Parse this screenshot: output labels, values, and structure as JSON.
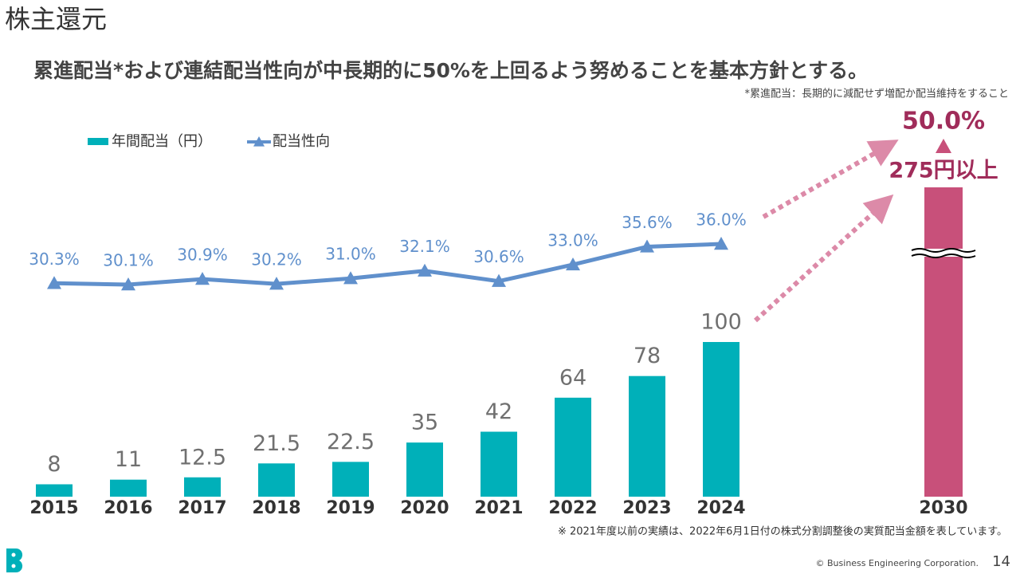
{
  "header": {
    "title": "株主還元",
    "page": "14"
  },
  "subtitle": "累進配当*および連結配当性向が中長期的に50%を上回るよう努めることを基本方針とする。",
  "note": "*累進配当：長期的に減配せず増配か配当維持をすること",
  "footnote": "※ 2021年度以前の実績は、2022年6月1日付の株式分割調整後の実質配当金額を表しています。",
  "copyright": "© Business Engineering Corporation.",
  "chart_data": {
    "type": "bar",
    "categories": [
      "2015",
      "2016",
      "2017",
      "2018",
      "2019",
      "2020",
      "2021",
      "2022",
      "2023",
      "2024",
      "2030"
    ],
    "axis_break": true,
    "series": [
      {
        "name": "年間配当（円）",
        "color": "#00b0b9",
        "highlight_color": "#c8507a",
        "values": [
          8,
          11,
          12.5,
          21.5,
          22.5,
          35,
          42,
          64,
          78,
          100,
          275
        ],
        "value_labels": [
          "8",
          "11",
          "12.5",
          "21.5",
          "22.5",
          "35",
          "42",
          "64",
          "78",
          "100",
          "275円以上"
        ]
      },
      {
        "name": "配当性向",
        "type": "line",
        "axis": "y2",
        "color": "#6090cc",
        "highlight_color": "#c8507a",
        "values": [
          30.3,
          30.1,
          30.9,
          30.2,
          31.0,
          32.1,
          30.6,
          33.0,
          35.6,
          36.0,
          50.0
        ],
        "value_labels": [
          "30.3%",
          "30.1%",
          "30.9%",
          "30.2%",
          "31.0%",
          "32.1%",
          "30.6%",
          "33.0%",
          "35.6%",
          "36.0%",
          "50.0%"
        ]
      }
    ]
  }
}
